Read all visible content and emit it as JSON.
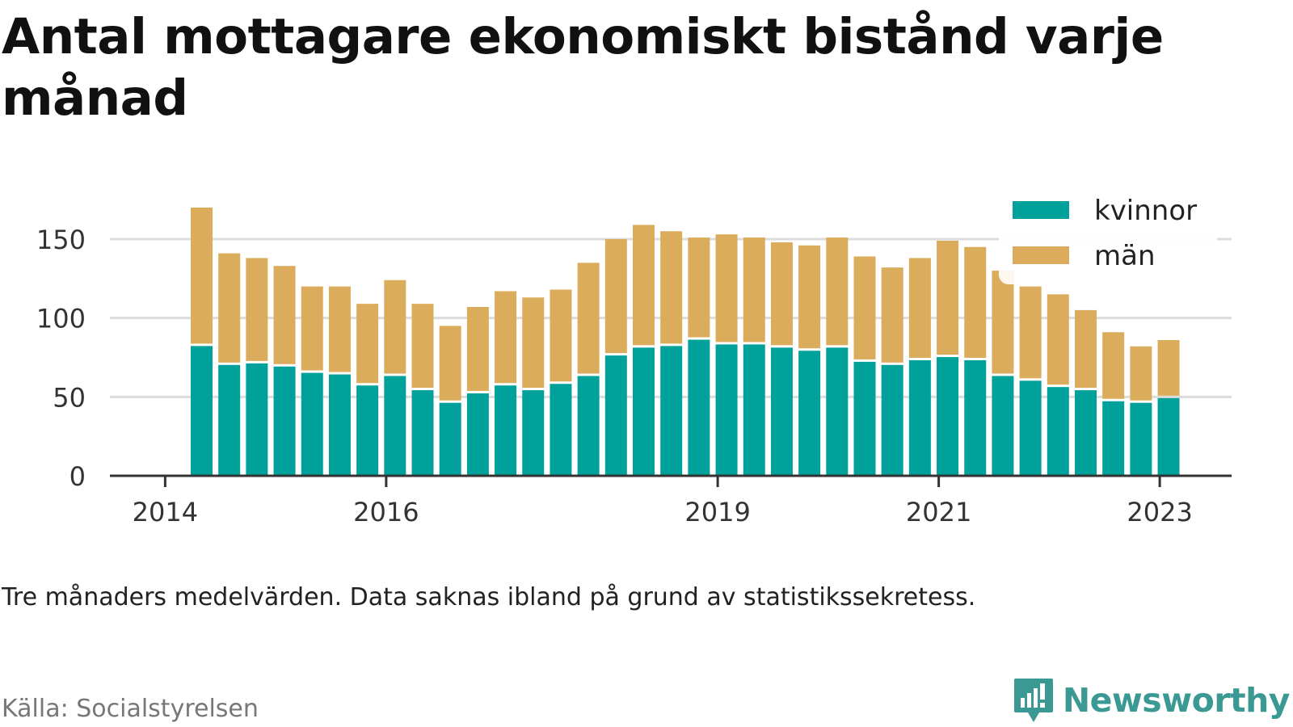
{
  "title": "Antal mottagare ekonomiskt bistånd varje månad",
  "note": "Tre månaders medelvärden. Data saknas ibland på grund av statistikssekretess.",
  "source": "Källa: Socialstyrelsen",
  "brand": "Newsworthy",
  "colors": {
    "kvinnor": "#00a19a",
    "man": "#dbac5c",
    "brand": "#3a9a93"
  },
  "legend": {
    "kvinnor": "kvinnor",
    "man": "män",
    "placement": "top-right"
  },
  "chart_data": {
    "type": "bar",
    "stacked": true,
    "x_ticks": [
      {
        "label": "2014",
        "year": 2014.0
      },
      {
        "label": "2016",
        "year": 2016.0
      },
      {
        "label": "2019",
        "year": 2019.0
      },
      {
        "label": "2021",
        "year": 2021.0
      },
      {
        "label": "2023",
        "year": 2023.0
      }
    ],
    "y_ticks": [
      "0",
      "50",
      "100",
      "150"
    ],
    "ylim": [
      0,
      175
    ],
    "xlim": [
      2013.5,
      2023.65
    ],
    "grid": true,
    "x": [
      2014.33,
      2014.58,
      2014.83,
      2015.08,
      2015.33,
      2015.58,
      2015.83,
      2016.08,
      2016.33,
      2016.58,
      2016.83,
      2017.08,
      2017.33,
      2017.58,
      2017.83,
      2018.08,
      2018.33,
      2018.58,
      2018.83,
      2019.08,
      2019.33,
      2019.58,
      2019.83,
      2020.08,
      2020.33,
      2020.58,
      2020.83,
      2021.08,
      2021.33,
      2021.58,
      2021.83,
      2022.08,
      2022.33,
      2022.58,
      2022.83,
      2023.08
    ],
    "series": [
      {
        "name": "kvinnor",
        "values": [
          83,
          71,
          72,
          70,
          66,
          65,
          58,
          64,
          55,
          47,
          53,
          58,
          55,
          59,
          64,
          77,
          82,
          83,
          87,
          84,
          84,
          82,
          80,
          82,
          73,
          71,
          74,
          76,
          74,
          64,
          61,
          57,
          55,
          48,
          47,
          50
        ]
      },
      {
        "name": "män",
        "values": [
          87,
          70,
          66,
          63,
          54,
          55,
          51,
          60,
          54,
          48,
          54,
          59,
          58,
          59,
          71,
          73,
          77,
          72,
          64,
          69,
          67,
          66,
          66,
          69,
          66,
          61,
          64,
          73,
          71,
          66,
          59,
          58,
          50,
          43,
          35,
          36
        ]
      }
    ]
  }
}
